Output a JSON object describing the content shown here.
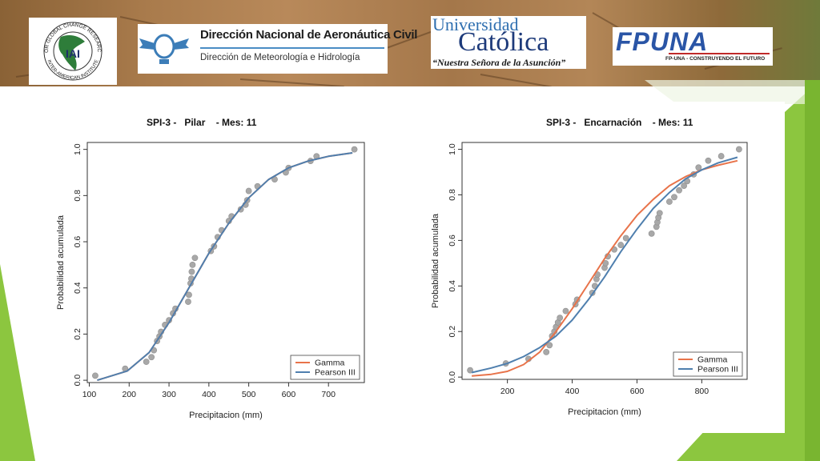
{
  "logos": {
    "iai": {
      "letters": "IAI",
      "ring_top": "FOR GLOBAL CHANGE RESEARCH",
      "ring_bottom": "INTER-AMERICAN INSTITUTE"
    },
    "dinac": {
      "title": "Dirección Nacional de Aeronáutica Civil",
      "subtitle": "Dirección de Meteorología e Hidrología"
    },
    "uca": {
      "line1": "Universidad",
      "line2": "Católica",
      "motto": "“Nuestra Señora de la Asunción”"
    },
    "fpuna": {
      "mark": "FPUNA",
      "tagline": "FP-UNA - CONSTRUYENDO EL FUTURO"
    }
  },
  "colors": {
    "gamma": "#e8734a",
    "pearson": "#4f7fae",
    "points": "#a8a8a8",
    "accent_green": "#8cc63f"
  },
  "chart_data": [
    {
      "type": "scatter",
      "title": "SPI-3 -   Pilar    - Mes: 11",
      "xlabel": "Precipitacion (mm)",
      "ylabel": "Probabilidad acumulada",
      "xlim": [
        95,
        790
      ],
      "ylim": [
        -0.01,
        1.03
      ],
      "xticks": [
        100,
        200,
        300,
        400,
        500,
        600,
        700
      ],
      "yticks": [
        "0.0",
        "0.2",
        "0.4",
        "0.6",
        "0.8",
        "1.0"
      ],
      "legend": {
        "position": "bottom-right",
        "entries": [
          "Gamma",
          "Pearson III"
        ]
      },
      "points": [
        [
          115,
          0.02
        ],
        [
          190,
          0.05
        ],
        [
          243,
          0.08
        ],
        [
          256,
          0.1
        ],
        [
          262,
          0.13
        ],
        [
          270,
          0.17
        ],
        [
          276,
          0.19
        ],
        [
          280,
          0.21
        ],
        [
          290,
          0.24
        ],
        [
          300,
          0.26
        ],
        [
          310,
          0.29
        ],
        [
          316,
          0.31
        ],
        [
          348,
          0.34
        ],
        [
          350,
          0.37
        ],
        [
          354,
          0.42
        ],
        [
          356,
          0.44
        ],
        [
          357,
          0.47
        ],
        [
          359,
          0.5
        ],
        [
          365,
          0.53
        ],
        [
          405,
          0.56
        ],
        [
          413,
          0.58
        ],
        [
          422,
          0.62
        ],
        [
          432,
          0.65
        ],
        [
          450,
          0.69
        ],
        [
          457,
          0.71
        ],
        [
          480,
          0.74
        ],
        [
          492,
          0.76
        ],
        [
          496,
          0.78
        ],
        [
          500,
          0.82
        ],
        [
          522,
          0.84
        ],
        [
          565,
          0.87
        ],
        [
          593,
          0.9
        ],
        [
          600,
          0.92
        ],
        [
          655,
          0.95
        ],
        [
          670,
          0.97
        ],
        [
          765,
          1.0
        ]
      ],
      "series": [
        {
          "name": "Gamma",
          "x": [
            120,
            195,
            250,
            300,
            350,
            400,
            450,
            500,
            550,
            600,
            650,
            700,
            760
          ],
          "values": [
            0.0,
            0.04,
            0.12,
            0.25,
            0.4,
            0.55,
            0.68,
            0.79,
            0.87,
            0.92,
            0.95,
            0.97,
            0.985
          ]
        },
        {
          "name": "Pearson III",
          "x": [
            120,
            195,
            250,
            300,
            350,
            400,
            450,
            500,
            550,
            600,
            650,
            700,
            760
          ],
          "values": [
            0.0,
            0.04,
            0.12,
            0.25,
            0.4,
            0.55,
            0.68,
            0.79,
            0.87,
            0.92,
            0.95,
            0.97,
            0.985
          ]
        }
      ]
    },
    {
      "type": "scatter",
      "title": "SPI-3 -   Encarnación    - Mes: 11",
      "xlabel": "Precipitacion (mm)",
      "ylabel": "Probabilidad acumulada",
      "xlim": [
        60,
        940
      ],
      "ylim": [
        -0.01,
        1.03
      ],
      "xticks": [
        200,
        400,
        600,
        800
      ],
      "yticks": [
        "0.0",
        "0.2",
        "0.4",
        "0.6",
        "0.8",
        "1.0"
      ],
      "legend": {
        "position": "bottom-right",
        "entries": [
          "Gamma",
          "Pearson III"
        ]
      },
      "points": [
        [
          85,
          0.03
        ],
        [
          195,
          0.06
        ],
        [
          265,
          0.08
        ],
        [
          320,
          0.11
        ],
        [
          330,
          0.14
        ],
        [
          338,
          0.18
        ],
        [
          345,
          0.2
        ],
        [
          350,
          0.22
        ],
        [
          356,
          0.24
        ],
        [
          362,
          0.26
        ],
        [
          380,
          0.29
        ],
        [
          410,
          0.32
        ],
        [
          415,
          0.34
        ],
        [
          462,
          0.37
        ],
        [
          470,
          0.4
        ],
        [
          475,
          0.43
        ],
        [
          478,
          0.45
        ],
        [
          500,
          0.48
        ],
        [
          503,
          0.5
        ],
        [
          510,
          0.53
        ],
        [
          530,
          0.56
        ],
        [
          550,
          0.58
        ],
        [
          566,
          0.61
        ],
        [
          645,
          0.63
        ],
        [
          660,
          0.66
        ],
        [
          663,
          0.68
        ],
        [
          666,
          0.7
        ],
        [
          670,
          0.72
        ],
        [
          700,
          0.77
        ],
        [
          715,
          0.79
        ],
        [
          730,
          0.82
        ],
        [
          745,
          0.84
        ],
        [
          755,
          0.86
        ],
        [
          775,
          0.89
        ],
        [
          790,
          0.92
        ],
        [
          820,
          0.95
        ],
        [
          860,
          0.97
        ],
        [
          915,
          1.0
        ]
      ],
      "series": [
        {
          "name": "Gamma",
          "x": [
            90,
            150,
            200,
            250,
            300,
            350,
            400,
            450,
            500,
            550,
            600,
            650,
            700,
            750,
            800,
            850,
            910
          ],
          "values": [
            0.005,
            0.012,
            0.025,
            0.055,
            0.11,
            0.2,
            0.3,
            0.41,
            0.52,
            0.62,
            0.71,
            0.78,
            0.84,
            0.88,
            0.91,
            0.93,
            0.95
          ]
        },
        {
          "name": "Pearson III",
          "x": [
            90,
            150,
            200,
            250,
            300,
            350,
            400,
            450,
            500,
            550,
            600,
            650,
            700,
            750,
            800,
            850,
            910
          ],
          "values": [
            0.02,
            0.04,
            0.06,
            0.09,
            0.13,
            0.18,
            0.25,
            0.34,
            0.44,
            0.55,
            0.65,
            0.74,
            0.81,
            0.87,
            0.91,
            0.94,
            0.965
          ]
        }
      ]
    }
  ]
}
